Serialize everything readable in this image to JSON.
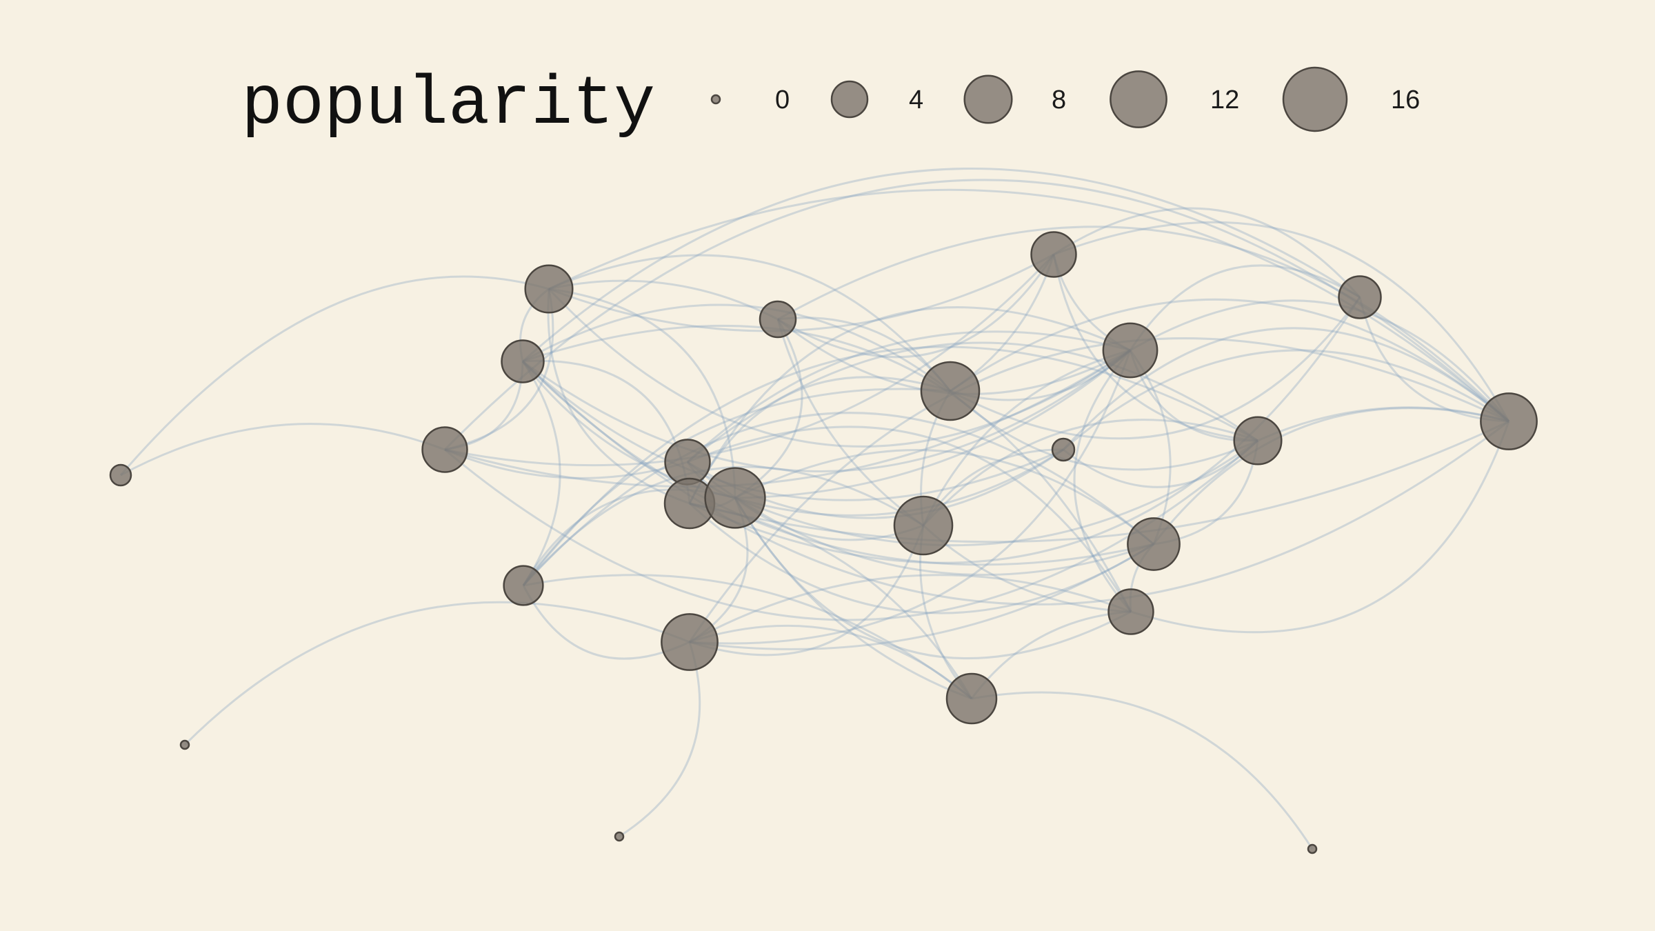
{
  "legend": {
    "title": "popularity",
    "entries": [
      {
        "label": "0",
        "value": 0
      },
      {
        "label": "4",
        "value": 4
      },
      {
        "label": "8",
        "value": 8
      },
      {
        "label": "12",
        "value": 12
      },
      {
        "label": "16",
        "value": 16
      }
    ]
  },
  "colors": {
    "background": "#f7f1e3",
    "node_fill": "#7c746c",
    "node_stroke": "#4b4640",
    "edge": "#7fa0bd"
  },
  "chart_data": {
    "type": "network",
    "size_variable": "popularity",
    "nodes": [
      {
        "id": "n1",
        "popularity": 8
      },
      {
        "id": "n2",
        "popularity": 4
      },
      {
        "id": "n3",
        "popularity": 7
      },
      {
        "id": "n4",
        "popularity": 6
      },
      {
        "id": "n5",
        "popularity": 6
      },
      {
        "id": "n6",
        "popularity": 13
      },
      {
        "id": "n7",
        "popularity": 11
      },
      {
        "id": "n8",
        "popularity": 7
      },
      {
        "id": "n9",
        "popularity": 7
      },
      {
        "id": "n10",
        "popularity": 1
      },
      {
        "id": "n11",
        "popularity": 8
      },
      {
        "id": "n12",
        "popularity": 12
      },
      {
        "id": "n13",
        "popularity": 9
      },
      {
        "id": "n14",
        "popularity": 14
      },
      {
        "id": "n15",
        "popularity": 13
      },
      {
        "id": "n16",
        "popularity": 10
      },
      {
        "id": "n17",
        "popularity": 5
      },
      {
        "id": "n18",
        "popularity": 12
      },
      {
        "id": "n19",
        "popularity": 7
      },
      {
        "id": "n20",
        "popularity": 9
      },
      {
        "id": "n21",
        "popularity": 0
      },
      {
        "id": "n22",
        "popularity": 0
      },
      {
        "id": "n23",
        "popularity": 0
      }
    ],
    "edges": [
      [
        "n1",
        "n2"
      ],
      [
        "n1",
        "n3"
      ],
      [
        "n1",
        "n6"
      ],
      [
        "n1",
        "n7"
      ],
      [
        "n1",
        "n8"
      ],
      [
        "n1",
        "n12"
      ],
      [
        "n1",
        "n14"
      ],
      [
        "n1",
        "n5"
      ],
      [
        "n1",
        "n13"
      ],
      [
        "n2",
        "n3"
      ],
      [
        "n2",
        "n6"
      ],
      [
        "n2",
        "n12"
      ],
      [
        "n2",
        "n7"
      ],
      [
        "n2",
        "n14"
      ],
      [
        "n2",
        "n15"
      ],
      [
        "n3",
        "n8"
      ],
      [
        "n3",
        "n4"
      ],
      [
        "n3",
        "n6"
      ],
      [
        "n3",
        "n12"
      ],
      [
        "n3",
        "n7"
      ],
      [
        "n3",
        "n11"
      ],
      [
        "n4",
        "n5"
      ],
      [
        "n4",
        "n6"
      ],
      [
        "n4",
        "n7"
      ],
      [
        "n4",
        "n12"
      ],
      [
        "n4",
        "n13"
      ],
      [
        "n5",
        "n6"
      ],
      [
        "n5",
        "n7"
      ],
      [
        "n5",
        "n13"
      ],
      [
        "n5",
        "n14"
      ],
      [
        "n5",
        "n16"
      ],
      [
        "n5",
        "n10"
      ],
      [
        "n5",
        "n19"
      ],
      [
        "n5",
        "n12"
      ],
      [
        "n5",
        "n8"
      ],
      [
        "n5",
        "n17"
      ],
      [
        "n6",
        "n7"
      ],
      [
        "n6",
        "n12"
      ],
      [
        "n6",
        "n11"
      ],
      [
        "n6",
        "n13"
      ],
      [
        "n6",
        "n17"
      ],
      [
        "n6",
        "n15"
      ],
      [
        "n7",
        "n8"
      ],
      [
        "n7",
        "n9"
      ],
      [
        "n7",
        "n11"
      ],
      [
        "n7",
        "n14"
      ],
      [
        "n7",
        "n16"
      ],
      [
        "n7",
        "n18"
      ],
      [
        "n7",
        "n12"
      ],
      [
        "n7",
        "n13"
      ],
      [
        "n7",
        "n15"
      ],
      [
        "n7",
        "n19"
      ],
      [
        "n8",
        "n9"
      ],
      [
        "n8",
        "n12"
      ],
      [
        "n8",
        "n11"
      ],
      [
        "n9",
        "n10"
      ],
      [
        "n9",
        "n11"
      ],
      [
        "n9",
        "n14"
      ],
      [
        "n9",
        "n16"
      ],
      [
        "n9",
        "n19"
      ],
      [
        "n10",
        "n11"
      ],
      [
        "n10",
        "n12"
      ],
      [
        "n10",
        "n15"
      ],
      [
        "n10",
        "n14"
      ],
      [
        "n11",
        "n12"
      ],
      [
        "n11",
        "n14"
      ],
      [
        "n11",
        "n15"
      ],
      [
        "n11",
        "n16"
      ],
      [
        "n11",
        "n17"
      ],
      [
        "n12",
        "n13"
      ],
      [
        "n12",
        "n16"
      ],
      [
        "n12",
        "n18"
      ],
      [
        "n12",
        "n19"
      ],
      [
        "n13",
        "n14"
      ],
      [
        "n13",
        "n16"
      ],
      [
        "n13",
        "n20"
      ],
      [
        "n14",
        "n15"
      ],
      [
        "n14",
        "n16"
      ],
      [
        "n14",
        "n17"
      ],
      [
        "n14",
        "n18"
      ],
      [
        "n14",
        "n19"
      ],
      [
        "n14",
        "n20"
      ],
      [
        "n15",
        "n17"
      ],
      [
        "n15",
        "n18"
      ],
      [
        "n15",
        "n19"
      ],
      [
        "n15",
        "n20"
      ],
      [
        "n16",
        "n17"
      ],
      [
        "n16",
        "n18"
      ],
      [
        "n16",
        "n19"
      ],
      [
        "n17",
        "n18"
      ],
      [
        "n17",
        "n20"
      ],
      [
        "n18",
        "n19"
      ],
      [
        "n18",
        "n20"
      ],
      [
        "n19",
        "n20"
      ],
      [
        "n18",
        "n21"
      ],
      [
        "n12",
        "n10"
      ],
      [
        "n18",
        "n22"
      ],
      [
        "n20",
        "n23"
      ]
    ]
  }
}
